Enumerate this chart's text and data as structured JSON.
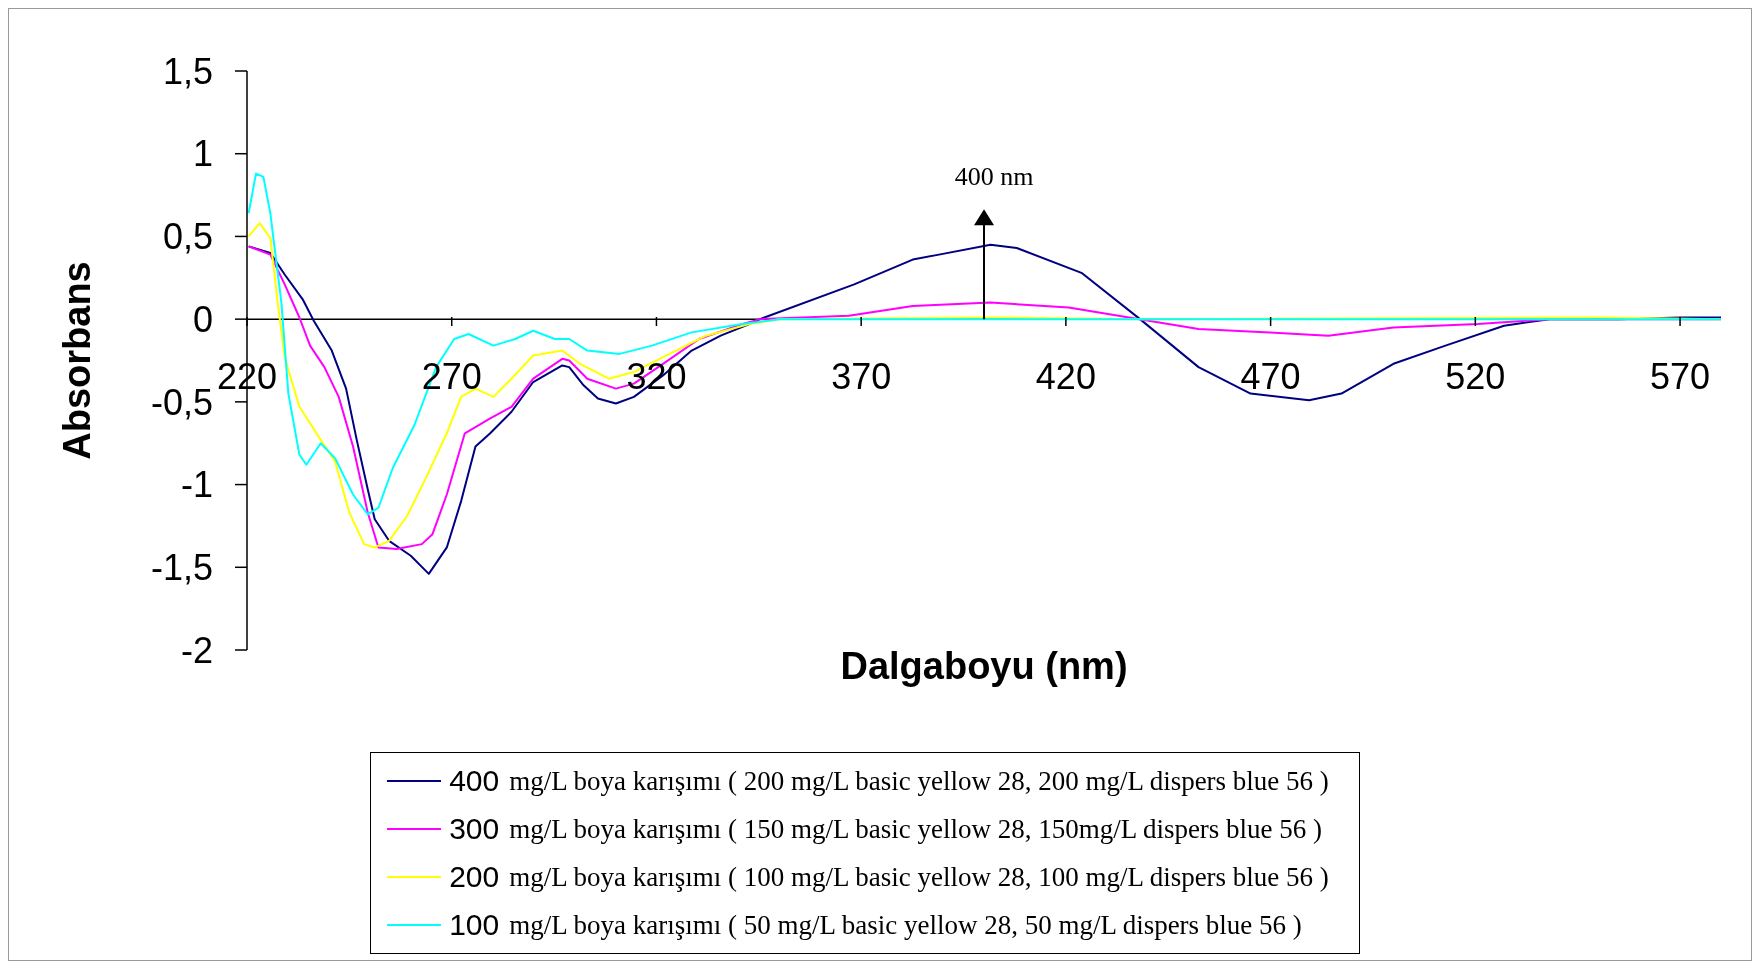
{
  "chart_data": {
    "type": "line",
    "xlabel": "Dalgaboyu (nm)",
    "ylabel": "Absorbans",
    "xlim": [
      220,
      580
    ],
    "xticks": [
      220,
      270,
      320,
      370,
      420,
      470,
      520,
      570
    ],
    "ylim": [
      -2,
      1.5
    ],
    "yticks": [
      -2,
      {
        "value": -1.5,
        "label": "-1,5"
      },
      -1,
      {
        "value": -0.5,
        "label": "-0,5"
      },
      0,
      {
        "value": 0.5,
        "label": "0,5"
      },
      1,
      {
        "value": 1.5,
        "label": "1,5"
      }
    ],
    "grid": false,
    "legend": "bottom",
    "marker": "none",
    "line_style": "solid",
    "ref_lines": [
      {
        "axis": "x",
        "value": 400,
        "label": "400 nm"
      }
    ],
    "series": [
      {
        "name": "400 mg/L boya karışımı ( 200 mg/L basic yellow 28, 200 mg/L dispers blue 56 )",
        "color": "#000080",
        "x": [
          220.4,
          225.7,
          229.2,
          233.6,
          236.3,
          240.7,
          244.2,
          246.8,
          249.5,
          251.2,
          254.7,
          260,
          264.4,
          268.8,
          272.3,
          275.8,
          279.4,
          284.6,
          289.9,
          297,
          298.7,
          302.2,
          305.7,
          310.1,
          314.5,
          321.6,
          328.6,
          335.7,
          342.7,
          345.3,
          368.3,
          382.6,
          389,
          401.6,
          408,
          423.8,
          438.1,
          452.4,
          465.1,
          479.4,
          487.3,
          500,
          512.7,
          527,
          538,
          555,
          570,
          580
        ],
        "values": [
          0.44,
          0.4,
          0.27,
          0.12,
          -0.01,
          -0.19,
          -0.42,
          -0.73,
          -1.03,
          -1.21,
          -1.34,
          -1.43,
          -1.54,
          -1.38,
          -1.1,
          -0.77,
          -0.69,
          -0.56,
          -0.38,
          -0.28,
          -0.29,
          -0.4,
          -0.48,
          -0.51,
          -0.47,
          -0.34,
          -0.19,
          -0.1,
          -0.03,
          0,
          0.21,
          0.36,
          0.39,
          0.45,
          0.43,
          0.28,
          0,
          -0.29,
          -0.45,
          -0.49,
          -0.45,
          -0.27,
          -0.16,
          -0.04,
          0,
          0,
          0.01,
          0.01
        ]
      },
      {
        "name": "300 mg/L boya karışımı ( 150 mg/L basic yellow 28, 150mg/L dispers blue 56 )",
        "color": "#ff00ff",
        "x": [
          220.4,
          225.7,
          229.2,
          232.8,
          235.4,
          238.9,
          242.4,
          245.9,
          249.5,
          252.1,
          256.5,
          262.7,
          265.3,
          268.8,
          273.2,
          279.4,
          284.6,
          289.9,
          297,
          298.7,
          303.1,
          310.1,
          314.5,
          321.6,
          330.4,
          340.9,
          345.3,
          367,
          382.6,
          401.6,
          420.7,
          438,
          452.4,
          469.8,
          484.1,
          500,
          520.6,
          538,
          560,
          580
        ],
        "values": [
          0.44,
          0.39,
          0.21,
          0.01,
          -0.16,
          -0.29,
          -0.47,
          -0.77,
          -1.17,
          -1.38,
          -1.39,
          -1.36,
          -1.3,
          -1.06,
          -0.69,
          -0.6,
          -0.53,
          -0.36,
          -0.24,
          -0.25,
          -0.36,
          -0.42,
          -0.39,
          -0.27,
          -0.12,
          -0.03,
          0,
          0.02,
          0.08,
          0.1,
          0.07,
          0,
          -0.06,
          -0.08,
          -0.1,
          -0.05,
          -0.03,
          0,
          0,
          0
        ]
      },
      {
        "name": "200 mg/L boya karışımı ( 100 mg/L basic yellow 28, 100 mg/L dispers blue 56 )",
        "color": "#ffff00",
        "x": [
          220.4,
          223.1,
          225.7,
          227.5,
          229.2,
          232.8,
          238,
          241.5,
          245,
          248.6,
          251.2,
          254.7,
          259.1,
          263.5,
          268.8,
          272.3,
          275.8,
          280.2,
          284.6,
          289.9,
          297,
          301.3,
          308.4,
          314.5,
          321.6,
          332.1,
          342.7,
          350,
          400,
          440,
          550,
          580
        ],
        "values": [
          0.5,
          0.58,
          0.49,
          0.1,
          -0.23,
          -0.53,
          -0.73,
          -0.86,
          -1.17,
          -1.36,
          -1.38,
          -1.34,
          -1.19,
          -0.97,
          -0.69,
          -0.47,
          -0.42,
          -0.47,
          -0.36,
          -0.22,
          -0.19,
          -0.27,
          -0.36,
          -0.32,
          -0.23,
          -0.1,
          -0.03,
          0,
          0.01,
          0,
          0.01,
          0
        ]
      },
      {
        "name": "100 mg/L boya karışımı ( 50 mg/L basic yellow 28, 50 mg/L dispers blue 56 )",
        "color": "#00ffff",
        "x": [
          220.4,
          222.2,
          224,
          225.7,
          228.4,
          230.1,
          232.8,
          234.5,
          238,
          241.5,
          245.9,
          249.5,
          252.1,
          255.6,
          260.9,
          266.2,
          270.6,
          274.1,
          280.2,
          285.5,
          289.9,
          295.2,
          298.7,
          303.1,
          311,
          318.9,
          328.6,
          340.9,
          350,
          580
        ],
        "values": [
          0.64,
          0.88,
          0.86,
          0.64,
          0.1,
          -0.45,
          -0.82,
          -0.88,
          -0.75,
          -0.84,
          -1.06,
          -1.18,
          -1.14,
          -0.9,
          -0.64,
          -0.29,
          -0.12,
          -0.09,
          -0.16,
          -0.12,
          -0.07,
          -0.12,
          -0.12,
          -0.19,
          -0.21,
          -0.16,
          -0.08,
          -0.03,
          0,
          0
        ]
      }
    ]
  }
}
